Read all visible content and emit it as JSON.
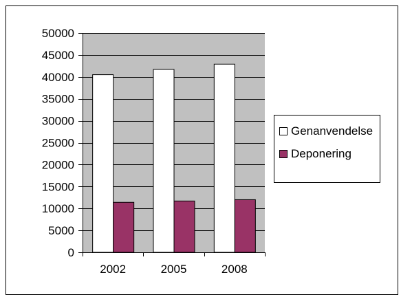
{
  "chart_data": {
    "type": "bar",
    "categories": [
      "2002",
      "2005",
      "2008"
    ],
    "series": [
      {
        "name": "Genanvendelse",
        "values": [
          40500,
          41700,
          42900
        ],
        "color": "#ffffff"
      },
      {
        "name": "Deponering",
        "values": [
          11400,
          11700,
          12000
        ],
        "color": "#993366"
      }
    ],
    "ylim": [
      0,
      50000
    ],
    "yticks": [
      0,
      5000,
      10000,
      15000,
      20000,
      25000,
      30000,
      35000,
      40000,
      45000,
      50000
    ],
    "grid": true,
    "plot_background": "#c0c0c0",
    "legend_position": "right"
  }
}
